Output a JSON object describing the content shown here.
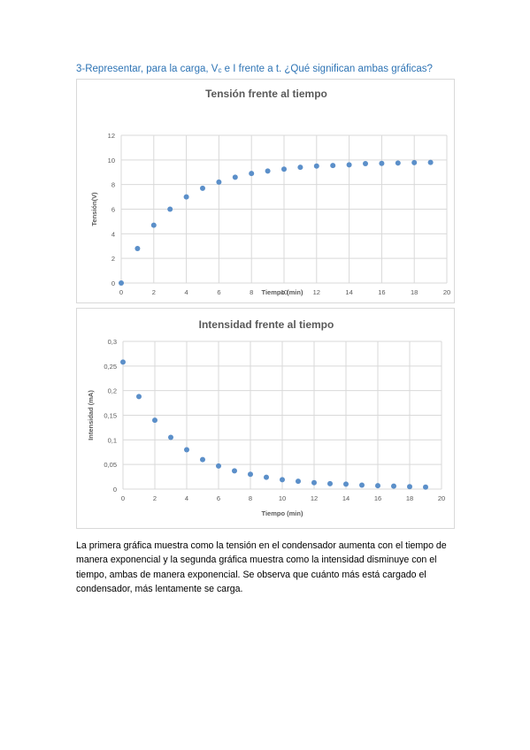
{
  "heading": {
    "prefix": "3-Representar, para la carga, V",
    "subscript": "c",
    "suffix": " e I frente a t. ¿Qué significan ambas gráficas?"
  },
  "paragraph": "La primera gráfica muestra como la tensión en el condensador aumenta con el tiempo de manera exponencial y la segunda gráfica muestra como la intensidad disminuye con el tiempo, ambas de manera exponencial. Se observa que cuánto más está cargado el condensador, más lentamente se carga.",
  "colors": {
    "point": "#5b8fc9",
    "grid": "#d9d9d9",
    "text": "#595959",
    "heading": "#2e74b5"
  },
  "chart_data": [
    {
      "type": "scatter",
      "title": "Tensión  frente al tiempo",
      "xlabel": "Tiempo (min)",
      "ylabel": "Tensión(V)",
      "xlim": [
        0,
        20
      ],
      "ylim": [
        0,
        12
      ],
      "xticks": [
        0,
        2,
        4,
        6,
        8,
        10,
        12,
        14,
        16,
        18,
        20
      ],
      "yticks": [
        0,
        2,
        4,
        6,
        8,
        10,
        12
      ],
      "ytick_labels": [
        "0",
        "2",
        "4",
        "6",
        "8",
        "10",
        "12"
      ],
      "grid": true,
      "x": [
        0,
        1,
        2,
        3,
        4,
        5,
        6,
        7,
        8,
        9,
        10,
        11,
        12,
        13,
        14,
        15,
        16,
        17,
        18,
        19
      ],
      "y": [
        0,
        2.8,
        4.7,
        6.0,
        7.0,
        7.7,
        8.2,
        8.6,
        8.9,
        9.1,
        9.25,
        9.4,
        9.5,
        9.55,
        9.6,
        9.7,
        9.72,
        9.75,
        9.78,
        9.8
      ]
    },
    {
      "type": "scatter",
      "title": "Intensidad frente al tiempo",
      "xlabel": "Tiempo (min)",
      "ylabel": "Intensidad (mA)",
      "xlim": [
        0,
        20
      ],
      "ylim": [
        0,
        0.3
      ],
      "xticks": [
        0,
        2,
        4,
        6,
        8,
        10,
        12,
        14,
        16,
        18,
        20
      ],
      "yticks": [
        0,
        0.05,
        0.1,
        0.15,
        0.2,
        0.25,
        0.3
      ],
      "ytick_labels": [
        "0",
        "0,05",
        "0,1",
        "0,15",
        "0,2",
        "0,25",
        "0,3"
      ],
      "grid": true,
      "x": [
        0,
        1,
        2,
        3,
        4,
        5,
        6,
        7,
        8,
        9,
        10,
        11,
        12,
        13,
        14,
        15,
        16,
        17,
        18,
        19
      ],
      "y": [
        0.258,
        0.188,
        0.14,
        0.105,
        0.08,
        0.06,
        0.047,
        0.037,
        0.03,
        0.024,
        0.019,
        0.016,
        0.013,
        0.011,
        0.01,
        0.008,
        0.007,
        0.006,
        0.005,
        0.004
      ]
    }
  ]
}
